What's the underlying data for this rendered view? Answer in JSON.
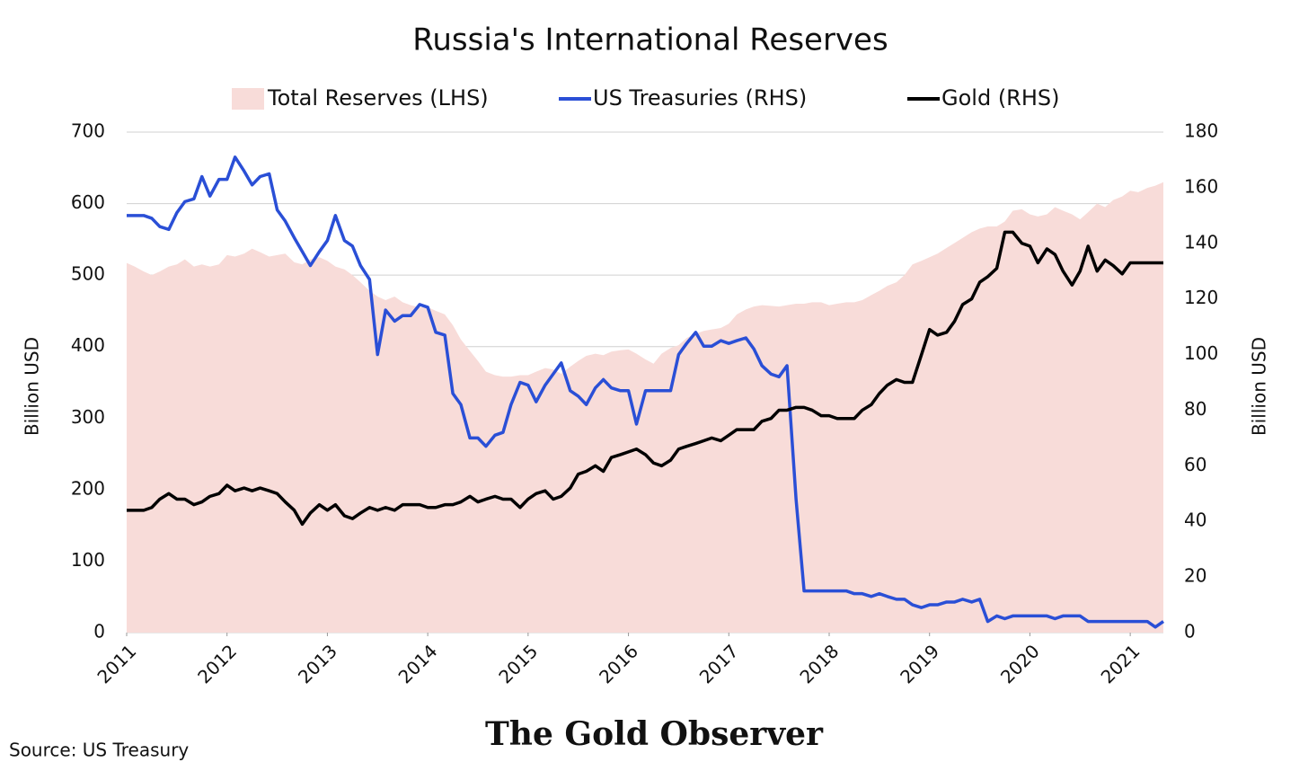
{
  "chart_data": {
    "type": "line",
    "title": "Russia's International Reserves",
    "ylabel": "Billion USD",
    "y2label": "Billion USD",
    "source": "Source: US Treasury",
    "footer": "The Gold Observer",
    "xlim": [
      2011,
      2021.33
    ],
    "xticks": [
      2011,
      2012,
      2013,
      2014,
      2015,
      2016,
      2017,
      2018,
      2019,
      2020,
      2021
    ],
    "ylim": [
      0,
      700
    ],
    "yticks": [
      0,
      100,
      200,
      300,
      400,
      500,
      600,
      700
    ],
    "y2lim": [
      0,
      180
    ],
    "y2ticks": [
      0,
      20,
      40,
      60,
      80,
      100,
      120,
      140,
      160,
      180
    ],
    "grid": true,
    "legend": "top",
    "x": [
      2011.0,
      2011.08,
      2011.17,
      2011.25,
      2011.33,
      2011.42,
      2011.5,
      2011.58,
      2011.67,
      2011.75,
      2011.83,
      2011.92,
      2012.0,
      2012.08,
      2012.17,
      2012.25,
      2012.33,
      2012.42,
      2012.5,
      2012.58,
      2012.67,
      2012.75,
      2012.83,
      2012.92,
      2013.0,
      2013.08,
      2013.17,
      2013.25,
      2013.33,
      2013.42,
      2013.5,
      2013.58,
      2013.67,
      2013.75,
      2013.83,
      2013.92,
      2014.0,
      2014.08,
      2014.17,
      2014.25,
      2014.33,
      2014.42,
      2014.5,
      2014.58,
      2014.67,
      2014.75,
      2014.83,
      2014.92,
      2015.0,
      2015.08,
      2015.17,
      2015.25,
      2015.33,
      2015.42,
      2015.5,
      2015.58,
      2015.67,
      2015.75,
      2015.83,
      2015.92,
      2016.0,
      2016.08,
      2016.17,
      2016.25,
      2016.33,
      2016.42,
      2016.5,
      2016.58,
      2016.67,
      2016.75,
      2016.83,
      2016.92,
      2017.0,
      2017.08,
      2017.17,
      2017.25,
      2017.33,
      2017.42,
      2017.5,
      2017.58,
      2017.67,
      2017.75,
      2017.83,
      2017.92,
      2018.0,
      2018.08,
      2018.17,
      2018.25,
      2018.33,
      2018.42,
      2018.5,
      2018.58,
      2018.67,
      2018.75,
      2018.83,
      2018.92,
      2019.0,
      2019.08,
      2019.17,
      2019.25,
      2019.33,
      2019.42,
      2019.5,
      2019.58,
      2019.67,
      2019.75,
      2019.83,
      2019.92,
      2020.0,
      2020.08,
      2020.17,
      2020.25,
      2020.33,
      2020.42,
      2020.5,
      2020.58,
      2020.67,
      2020.75,
      2020.83,
      2020.92,
      2021.0,
      2021.08,
      2021.17,
      2021.25,
      2021.33
    ],
    "series": [
      {
        "name": "Total Reserves (LHS)",
        "type": "area",
        "color": "#f8dcd9",
        "values": [
          517,
          512,
          505,
          500,
          505,
          512,
          515,
          522,
          512,
          515,
          512,
          515,
          528,
          526,
          530,
          537,
          532,
          526,
          528,
          530,
          518,
          515,
          522,
          525,
          520,
          512,
          508,
          500,
          490,
          478,
          470,
          465,
          470,
          462,
          458,
          455,
          455,
          450,
          445,
          430,
          410,
          394,
          380,
          365,
          360,
          358,
          358,
          360,
          360,
          365,
          370,
          368,
          362,
          372,
          380,
          387,
          390,
          388,
          393,
          395,
          396,
          390,
          382,
          376,
          390,
          398,
          402,
          412,
          418,
          422,
          424,
          426,
          432,
          445,
          452,
          456,
          458,
          457,
          456,
          458,
          460,
          460,
          462,
          462,
          458,
          460,
          462,
          462,
          465,
          472,
          478,
          485,
          490,
          500,
          515,
          520,
          525,
          530,
          538,
          545,
          552,
          560,
          565,
          568,
          568,
          575,
          590,
          592,
          585,
          582,
          585,
          595,
          590,
          585,
          578,
          588,
          600,
          595,
          605,
          610,
          618,
          616,
          622,
          625,
          630
        ]
      },
      {
        "name": "US Treasuries (RHS)",
        "type": "line",
        "axis": "y2",
        "color": "#2a4fd6",
        "values": [
          150,
          150,
          150,
          149,
          146,
          145,
          151,
          155,
          156,
          164,
          157,
          163,
          163,
          171,
          166,
          161,
          164,
          165,
          152,
          148,
          142,
          137,
          132,
          137,
          141,
          150,
          141,
          139,
          132,
          127,
          100,
          116,
          112,
          114,
          114,
          118,
          117,
          108,
          107,
          86,
          82,
          70,
          70,
          67,
          71,
          72,
          82,
          90,
          89,
          83,
          89,
          93,
          97,
          87,
          85,
          82,
          88,
          91,
          88,
          87,
          87,
          75,
          87,
          87,
          87,
          87,
          100,
          104,
          108,
          103,
          103,
          105,
          104,
          105,
          106,
          102,
          96,
          93,
          92,
          96,
          48,
          15,
          15,
          15,
          15,
          15,
          15,
          14,
          14,
          13,
          14,
          13,
          12,
          12,
          10,
          9,
          10,
          10,
          11,
          11,
          12,
          11,
          12,
          4,
          6,
          5,
          6,
          6,
          6,
          6,
          6,
          5,
          6,
          6,
          6,
          4,
          4,
          4,
          4,
          4,
          4,
          4,
          4,
          2,
          4
        ]
      },
      {
        "name": "Gold (RHS)",
        "type": "line",
        "axis": "y2",
        "color": "#000000",
        "values": [
          44,
          44,
          44,
          45,
          48,
          50,
          48,
          48,
          46,
          47,
          49,
          50,
          53,
          51,
          52,
          51,
          52,
          51,
          50,
          47,
          44,
          39,
          43,
          46,
          44,
          46,
          42,
          41,
          43,
          45,
          44,
          45,
          44,
          46,
          46,
          46,
          45,
          45,
          46,
          46,
          47,
          49,
          47,
          48,
          49,
          48,
          48,
          45,
          48,
          50,
          51,
          48,
          49,
          52,
          57,
          58,
          60,
          58,
          63,
          64,
          65,
          66,
          64,
          61,
          60,
          62,
          66,
          67,
          68,
          69,
          70,
          69,
          71,
          73,
          73,
          73,
          76,
          77,
          80,
          80,
          81,
          81,
          80,
          78,
          78,
          77,
          77,
          77,
          80,
          82,
          86,
          89,
          91,
          90,
          90,
          100,
          109,
          107,
          108,
          112,
          118,
          120,
          126,
          128,
          131,
          144,
          144,
          140,
          139,
          133,
          138,
          136,
          130,
          125,
          130,
          139,
          130,
          134,
          132,
          129,
          133,
          133,
          133,
          133,
          133
        ]
      }
    ]
  }
}
